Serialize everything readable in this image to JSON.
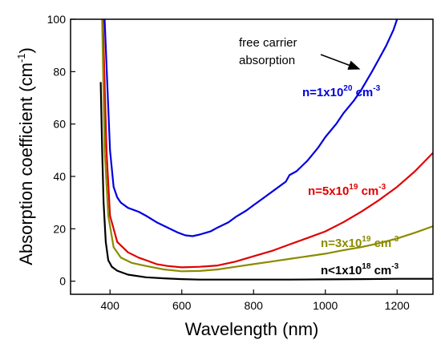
{
  "chart_data": {
    "type": "line",
    "xlabel": "Wavelength (nm)",
    "ylabel_main": "Absorption coefficient (cm",
    "ylabel_sup": "-1",
    "ylabel_close": ")",
    "xlim": [
      290,
      1300
    ],
    "ylim": [
      -5,
      100
    ],
    "xticks": [
      400,
      600,
      800,
      1000,
      1200
    ],
    "yticks": [
      0,
      20,
      40,
      60,
      80,
      100
    ],
    "grid": false,
    "series": [
      {
        "color": "#0000e0",
        "label_parts": [
          "n=1x10",
          "20",
          " cm",
          "-3"
        ],
        "points": [
          [
            385,
            100
          ],
          [
            400,
            50
          ],
          [
            410,
            36
          ],
          [
            420,
            32
          ],
          [
            430,
            30
          ],
          [
            450,
            28
          ],
          [
            480,
            26.5
          ],
          [
            500,
            25
          ],
          [
            530,
            22.5
          ],
          [
            560,
            20.5
          ],
          [
            590,
            18.5
          ],
          [
            610,
            17.5
          ],
          [
            630,
            17.2
          ],
          [
            650,
            17.8
          ],
          [
            680,
            19
          ],
          [
            700,
            20.5
          ],
          [
            730,
            22.5
          ],
          [
            750,
            24.5
          ],
          [
            780,
            27
          ],
          [
            800,
            29
          ],
          [
            830,
            32
          ],
          [
            860,
            35
          ],
          [
            890,
            38
          ],
          [
            900,
            40.5
          ],
          [
            920,
            42
          ],
          [
            950,
            46
          ],
          [
            980,
            51
          ],
          [
            1000,
            55
          ],
          [
            1030,
            60
          ],
          [
            1050,
            64
          ],
          [
            1080,
            69
          ],
          [
            1100,
            73
          ],
          [
            1130,
            80
          ],
          [
            1150,
            85
          ],
          [
            1170,
            90
          ],
          [
            1190,
            96
          ],
          [
            1200,
            100
          ]
        ]
      },
      {
        "color": "#e00000",
        "label_parts": [
          "n=5x10",
          "19",
          " cm",
          "-3"
        ],
        "points": [
          [
            380,
            100
          ],
          [
            390,
            50
          ],
          [
            400,
            25
          ],
          [
            420,
            15
          ],
          [
            450,
            11
          ],
          [
            480,
            9
          ],
          [
            500,
            8
          ],
          [
            530,
            6.5
          ],
          [
            560,
            5.8
          ],
          [
            600,
            5.3
          ],
          [
            650,
            5.5
          ],
          [
            700,
            6
          ],
          [
            750,
            7.5
          ],
          [
            800,
            9.5
          ],
          [
            850,
            11.5
          ],
          [
            900,
            14
          ],
          [
            950,
            16.5
          ],
          [
            1000,
            19
          ],
          [
            1050,
            22.5
          ],
          [
            1100,
            26.5
          ],
          [
            1150,
            31
          ],
          [
            1200,
            36
          ],
          [
            1250,
            42
          ],
          [
            1300,
            49
          ]
        ]
      },
      {
        "color": "#8b8b00",
        "label_parts": [
          "n=3x10",
          "19",
          " cm",
          "-3"
        ],
        "points": [
          [
            378,
            100
          ],
          [
            385,
            50
          ],
          [
            395,
            25
          ],
          [
            410,
            13
          ],
          [
            430,
            9
          ],
          [
            460,
            7
          ],
          [
            500,
            5.8
          ],
          [
            550,
            4.5
          ],
          [
            600,
            3.8
          ],
          [
            650,
            3.9
          ],
          [
            700,
            4.5
          ],
          [
            750,
            5.5
          ],
          [
            800,
            6.5
          ],
          [
            850,
            7.5
          ],
          [
            900,
            8.5
          ],
          [
            950,
            9.5
          ],
          [
            1000,
            10.5
          ],
          [
            1050,
            11.8
          ],
          [
            1100,
            13
          ],
          [
            1150,
            14.5
          ],
          [
            1200,
            16.3
          ],
          [
            1250,
            18.5
          ],
          [
            1300,
            21
          ]
        ]
      },
      {
        "color": "#000000",
        "label_parts": [
          "n<1x10",
          "18",
          " cm",
          "-3"
        ],
        "points": [
          [
            374,
            76
          ],
          [
            378,
            50
          ],
          [
            382,
            30
          ],
          [
            388,
            15
          ],
          [
            395,
            8
          ],
          [
            405,
            5.5
          ],
          [
            420,
            4
          ],
          [
            450,
            2.5
          ],
          [
            500,
            1.5
          ],
          [
            550,
            1.1
          ],
          [
            600,
            0.8
          ],
          [
            650,
            0.6
          ],
          [
            700,
            0.6
          ],
          [
            800,
            0.6
          ],
          [
            900,
            0.6
          ],
          [
            1000,
            0.7
          ],
          [
            1100,
            0.8
          ],
          [
            1200,
            0.9
          ],
          [
            1300,
            0.9
          ]
        ]
      }
    ],
    "annotation": {
      "line1": "free carrier",
      "line2": "absorption"
    }
  }
}
